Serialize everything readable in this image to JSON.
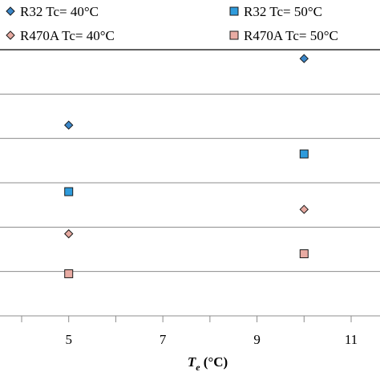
{
  "chart_data": {
    "type": "scatter",
    "xlabel_main": "T",
    "xlabel_sub": "e",
    "xlabel_unit": " (°C)",
    "x_ticks": [
      5,
      7,
      9,
      11
    ],
    "xlim": [
      3.0,
      11.5
    ],
    "ylim": [
      0,
      12
    ],
    "grid": true,
    "legend_position": "top",
    "series": [
      {
        "name": "R32 Tc=  40°C",
        "marker": "diamond",
        "color": "#3a86c8",
        "x": [
          5,
          10
        ],
        "y": [
          8.6,
          11.6
        ]
      },
      {
        "name": "R32 Tc=  50°C",
        "marker": "square",
        "color": "#2e9bdc",
        "x": [
          5,
          10
        ],
        "y": [
          5.6,
          7.3
        ]
      },
      {
        "name": "R470A Tc=  40°C",
        "marker": "diamond",
        "color": "#e6a9a0",
        "x": [
          5,
          10
        ],
        "y": [
          3.7,
          4.8
        ]
      },
      {
        "name": "R470A Tc=  50°C",
        "marker": "square",
        "color": "#e8aba3",
        "x": [
          5,
          10
        ],
        "y": [
          1.9,
          2.8
        ]
      }
    ]
  }
}
